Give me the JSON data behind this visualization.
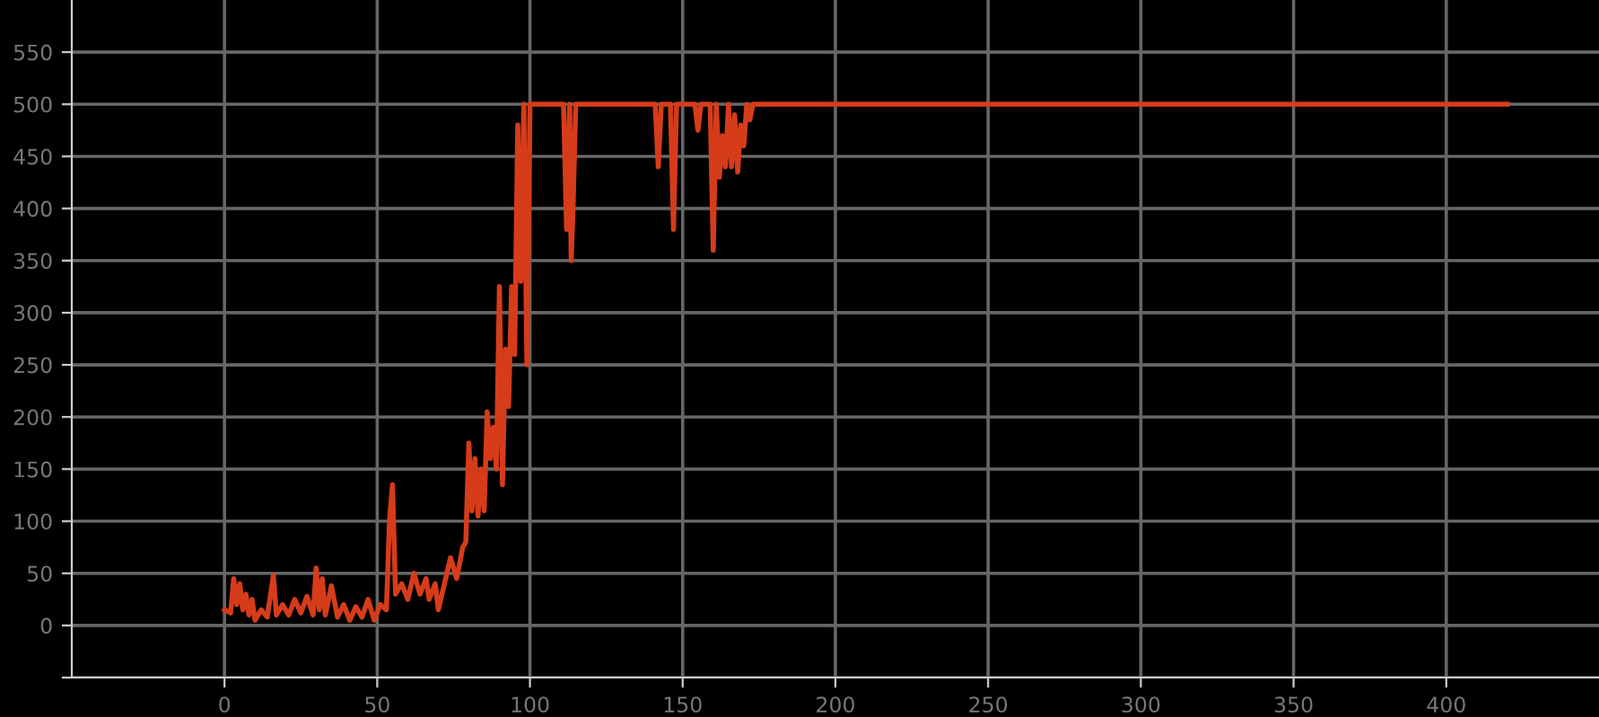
{
  "chart_data": {
    "type": "line",
    "xlim": [
      -50,
      450
    ],
    "ylim": [
      -50,
      600
    ],
    "xticks": [
      0,
      50,
      100,
      150,
      200,
      250,
      300,
      350,
      400
    ],
    "yticks": [
      {
        "value": -50,
        "label": null
      },
      0,
      50,
      100,
      150,
      200,
      250,
      300,
      350,
      400,
      450,
      500,
      550
    ],
    "grid": true,
    "marker": "none",
    "line_style": "solid",
    "series": [
      {
        "color": "#d63c1a",
        "x": [
          0,
          2,
          3,
          4,
          5,
          6,
          7,
          8,
          9,
          10,
          12,
          14,
          16,
          17,
          19,
          21,
          23,
          25,
          27,
          29,
          30,
          31,
          32,
          33,
          35,
          37,
          39,
          41,
          43,
          45,
          47,
          49,
          51,
          53,
          54,
          55,
          56,
          58,
          60,
          62,
          64,
          66,
          67,
          69,
          70,
          72,
          74,
          76,
          78,
          79,
          80,
          81,
          82,
          83,
          84,
          85,
          86,
          87,
          88,
          89,
          90,
          91,
          92,
          93,
          94,
          95,
          96,
          97,
          98,
          99,
          100,
          111,
          112,
          113,
          113.5,
          114,
          115,
          141,
          142,
          143,
          146,
          147,
          148,
          154,
          155,
          156,
          159,
          160,
          161,
          162,
          163,
          164,
          165,
          166,
          167,
          168,
          169,
          170,
          171,
          172,
          173,
          420
        ],
        "values": [
          15,
          12,
          45,
          20,
          40,
          15,
          30,
          10,
          25,
          5,
          15,
          8,
          48,
          10,
          20,
          10,
          25,
          12,
          28,
          10,
          55,
          15,
          45,
          10,
          38,
          8,
          20,
          5,
          18,
          8,
          25,
          5,
          20,
          15,
          100,
          135,
          30,
          40,
          25,
          50,
          30,
          45,
          25,
          40,
          15,
          40,
          65,
          45,
          75,
          80,
          175,
          110,
          160,
          105,
          150,
          110,
          205,
          160,
          190,
          150,
          325,
          135,
          265,
          210,
          325,
          260,
          480,
          330,
          500,
          250,
          500,
          500,
          380,
          500,
          350,
          390,
          500,
          500,
          440,
          500,
          500,
          380,
          500,
          500,
          475,
          500,
          500,
          360,
          500,
          430,
          470,
          440,
          500,
          440,
          490,
          435,
          480,
          460,
          500,
          485,
          500,
          500
        ]
      }
    ]
  }
}
